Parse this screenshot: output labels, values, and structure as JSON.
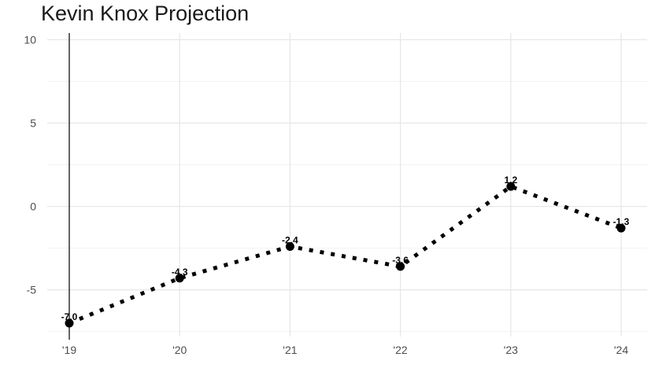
{
  "chart_data": {
    "type": "line",
    "title": "Kevin Knox Projection",
    "xlabel": "",
    "ylabel": "",
    "x": [
      "'19",
      "'20",
      "'21",
      "'22",
      "'23",
      "'24"
    ],
    "series": [
      {
        "values": [
          -7.0,
          -4.3,
          -2.4,
          -3.6,
          1.2,
          -1.3
        ]
      }
    ],
    "data_labels": [
      "-7.0",
      "-4.3",
      "-2.4",
      "-3.6",
      "1.2",
      "-1.3"
    ],
    "y_ticks": [
      -5,
      0,
      5,
      10
    ],
    "y_tick_labels": [
      "-5",
      "0",
      "5",
      "10"
    ],
    "ylim": [
      -7.8,
      10.4
    ],
    "grid": true,
    "line_style": "dotted",
    "colors": {
      "line": "#000000",
      "grid_major": "#e6e6e6",
      "grid_minor": "#f2f2f2",
      "axis": "#000000"
    }
  }
}
